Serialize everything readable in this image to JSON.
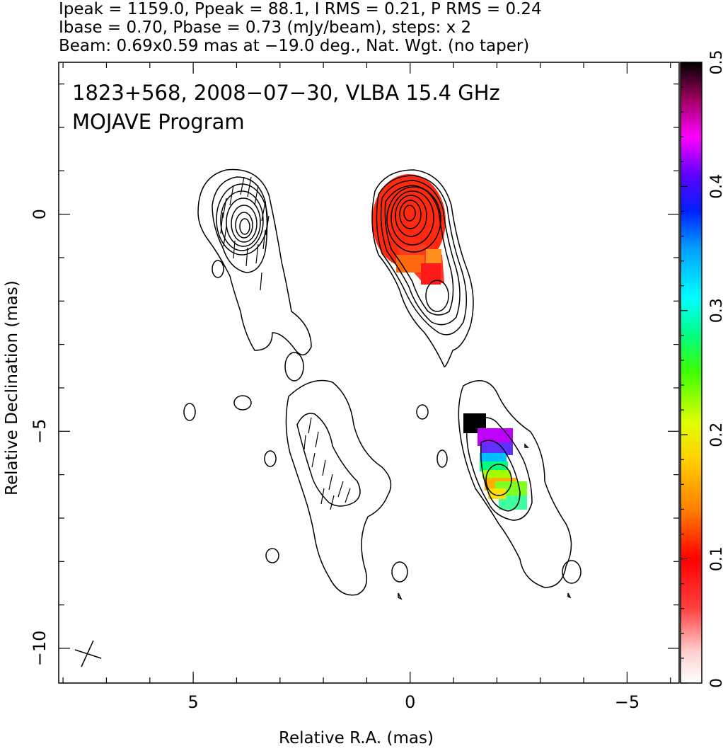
{
  "header": {
    "line1": "Ipeak = 1159.0, Ppeak = 88.1, I RMS = 0.21, P RMS = 0.24",
    "line2": "Ibase = 0.70, Pbase = 0.73 (mJy/beam), steps: x 2",
    "line3": "Beam: 0.69x0.59 mas at −19.0 deg., Nat. Wgt. (no taper)"
  },
  "plot_title": {
    "line1": "1823+568, 2008−07−30, VLBA 15.4 GHz",
    "line2": "MOJAVE Program"
  },
  "chart_data": {
    "type": "contour",
    "xlabel": "Relative R.A. (mas)",
    "ylabel": "Relative Declination (mas)",
    "xlim": [
      8.1,
      -6.2
    ],
    "ylim": [
      -10.8,
      3.5
    ],
    "x_ticks": [
      5,
      0,
      -5
    ],
    "y_ticks": [
      0,
      -5,
      -10
    ],
    "colorbar": {
      "range": [
        0,
        0.5
      ],
      "ticks": [
        0,
        0.1,
        0.2,
        0.3,
        0.4,
        0.5
      ],
      "colors": [
        "#ffffff",
        "#ff3030",
        "#ff1010",
        "#ff8000",
        "#ffd000",
        "#f0ff00",
        "#50ff00",
        "#00ff80",
        "#00ffff",
        "#00a0ff",
        "#0030ff",
        "#6000ff",
        "#ff00ff",
        "#a00060",
        "#000000"
      ]
    },
    "panels": [
      "Stokes I contours with polarization vectors (left, offset)",
      "Stokes I contours with fractional polarization color map (right)"
    ]
  }
}
